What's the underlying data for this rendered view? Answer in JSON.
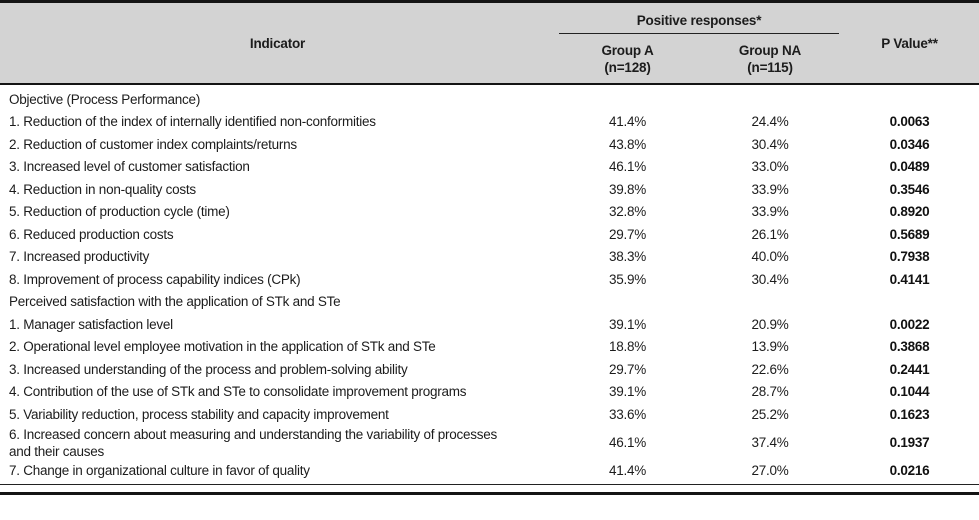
{
  "table": {
    "header": {
      "indicator": "Indicator",
      "positive_responses": "Positive responses*",
      "group_a": "Group A",
      "group_a_n": "(n=128)",
      "group_na": "Group NA",
      "group_na_n": "(n=115)",
      "p_value": "P Value**"
    },
    "sections": [
      {
        "title": "Objective (Process Performance)",
        "rows": [
          {
            "indicator": "1. Reduction of the index of internally identified non-conformities",
            "group_a": "41.4%",
            "group_na": "24.4%",
            "p_value": "0.0063"
          },
          {
            "indicator": "2. Reduction of customer index complaints/returns",
            "group_a": "43.8%",
            "group_na": "30.4%",
            "p_value": "0.0346"
          },
          {
            "indicator": "3. Increased level of customer satisfaction",
            "group_a": "46.1%",
            "group_na": "33.0%",
            "p_value": "0.0489"
          },
          {
            "indicator": "4. Reduction in non-quality costs",
            "group_a": "39.8%",
            "group_na": "33.9%",
            "p_value": "0.3546"
          },
          {
            "indicator": "5. Reduction of production cycle (time)",
            "group_a": "32.8%",
            "group_na": "33.9%",
            "p_value": "0.8920"
          },
          {
            "indicator": "6. Reduced production costs",
            "group_a": "29.7%",
            "group_na": "26.1%",
            "p_value": "0.5689"
          },
          {
            "indicator": "7. Increased productivity",
            "group_a": "38.3%",
            "group_na": "40.0%",
            "p_value": "0.7938"
          },
          {
            "indicator": "8. Improvement of process capability indices (CPk)",
            "group_a": "35.9%",
            "group_na": "30.4%",
            "p_value": "0.4141"
          }
        ]
      },
      {
        "title": "Perceived satisfaction with the application of STk and STe",
        "rows": [
          {
            "indicator": "1. Manager satisfaction level",
            "group_a": "39.1%",
            "group_na": "20.9%",
            "p_value": "0.0022"
          },
          {
            "indicator": "2. Operational level employee motivation in the application of STk and STe",
            "group_a": "18.8%",
            "group_na": "13.9%",
            "p_value": "0.3868"
          },
          {
            "indicator": "3. Increased understanding of the process and problem-solving ability",
            "group_a": "29.7%",
            "group_na": "22.6%",
            "p_value": "0.2441"
          },
          {
            "indicator": "4. Contribution of the use of STk and STe to consolidate improvement programs",
            "group_a": "39.1%",
            "group_na": "28.7%",
            "p_value": "0.1044"
          },
          {
            "indicator": "5. Variability reduction, process stability and capacity improvement",
            "group_a": "33.6%",
            "group_na": "25.2%",
            "p_value": "0.1623"
          },
          {
            "indicator": "6. Increased concern about measuring and understanding the variability of processes and their causes",
            "group_a": "46.1%",
            "group_na": "37.4%",
            "p_value": "0.1937"
          },
          {
            "indicator": "7. Change in organizational culture in favor of quality",
            "group_a": "41.4%",
            "group_na": "27.0%",
            "p_value": "0.0216"
          }
        ]
      }
    ]
  },
  "colors": {
    "header_bg": "#d3d3d3",
    "rule": "#141414",
    "text": "#1c1c1c"
  }
}
